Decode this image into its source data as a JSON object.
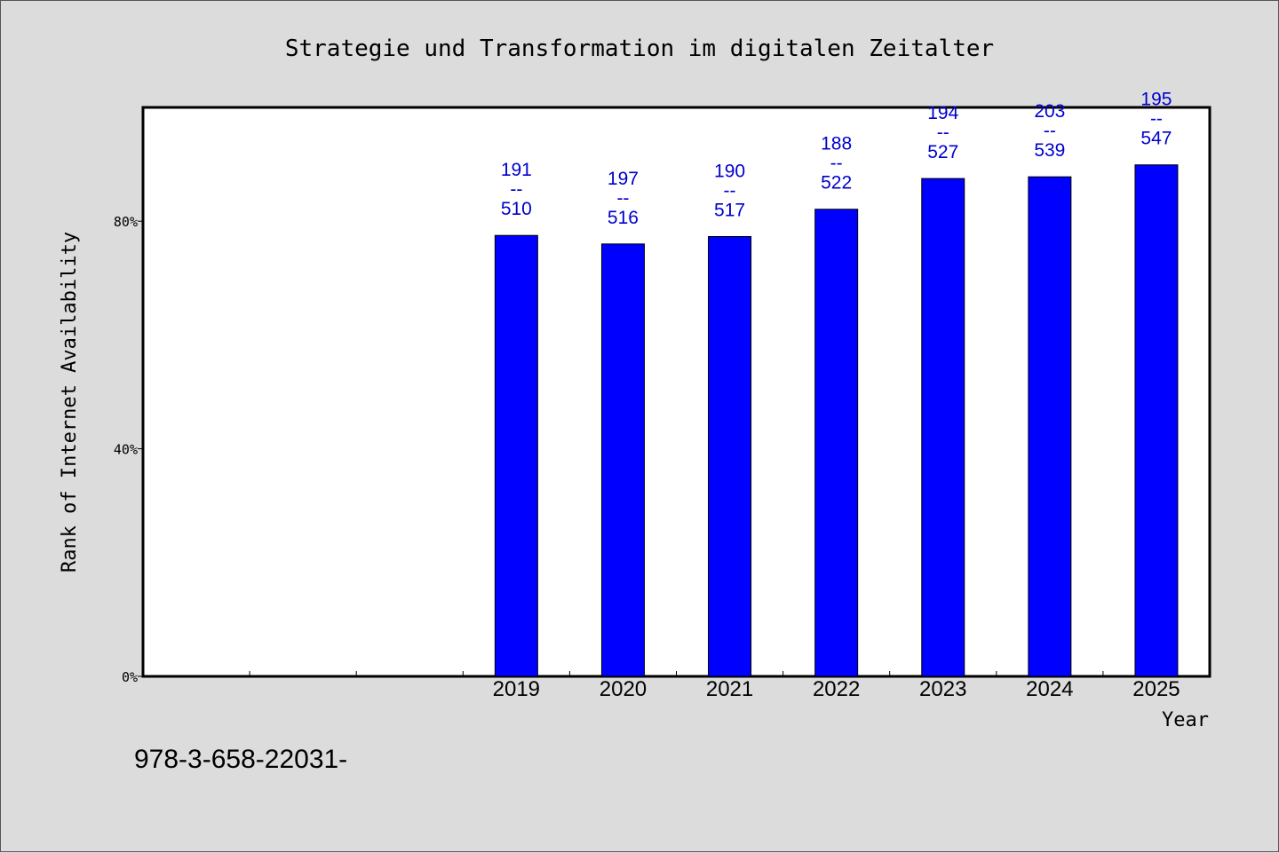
{
  "chart_data": {
    "type": "bar",
    "title": "Strategie und Transformation im digitalen Zeitalter",
    "xlabel": "Year",
    "ylabel": "Rank of Internet Availability",
    "y_tick_labels": [
      "0%",
      "40%",
      "80%"
    ],
    "y_ticks": [
      0,
      40,
      80
    ],
    "ylim": [
      0,
      100
    ],
    "categories": [
      "2019",
      "2020",
      "2021",
      "2022",
      "2023",
      "2024",
      "2025"
    ],
    "values": [
      77.5,
      76.0,
      77.3,
      82.1,
      87.5,
      87.8,
      89.9
    ],
    "data_labels": [
      [
        "191",
        "--",
        "510"
      ],
      [
        "197",
        "--",
        "516"
      ],
      [
        "190",
        "--",
        "517"
      ],
      [
        "188",
        "--",
        "522"
      ],
      [
        "194",
        "--",
        "527"
      ],
      [
        "203",
        "--",
        "539"
      ],
      [
        "195",
        "--",
        "547"
      ]
    ],
    "bar_color": "#0000ff",
    "label_color": "#0000cc",
    "grid": false,
    "legend": "none"
  },
  "footer_text": "978-3-658-22031-"
}
